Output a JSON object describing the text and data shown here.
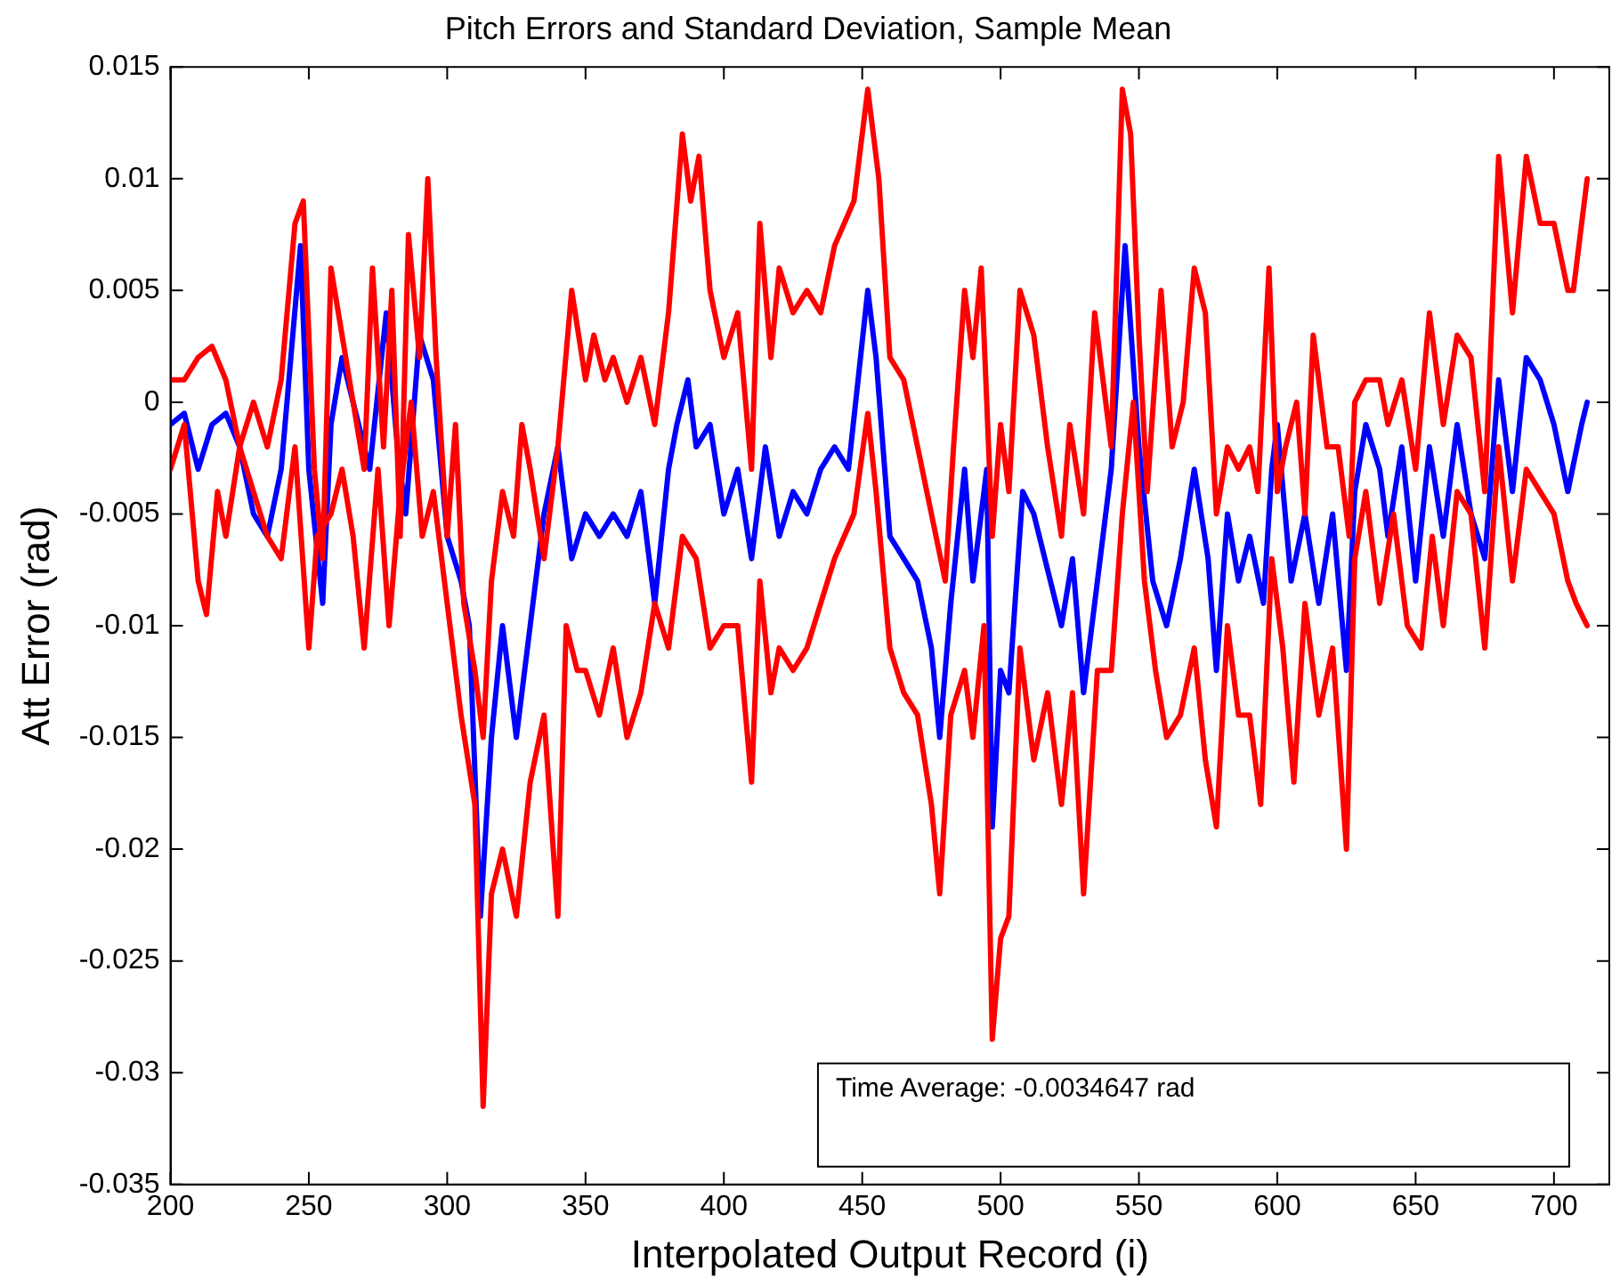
{
  "chart_data": {
    "type": "line",
    "title": "Pitch Errors and Standard Deviation, Sample Mean",
    "xlabel": "Interpolated Output Record (i)",
    "ylabel": "Att Error (rad)",
    "annotations": [
      "Time Average: -0.0034647 rad"
    ],
    "xlim": [
      200,
      720
    ],
    "xticks": [
      200,
      250,
      300,
      350,
      400,
      450,
      500,
      550,
      600,
      650,
      700
    ],
    "ylim": [
      -0.035,
      0.015
    ],
    "yticks": [
      -0.035,
      -0.03,
      -0.025,
      -0.02,
      -0.015,
      -0.01,
      -0.005,
      0,
      0.005,
      0.01,
      0.015
    ],
    "grid": false,
    "legend": false,
    "marker": "none",
    "line_style": "solid",
    "series": [
      {
        "color": "#ff0000",
        "x": [
          200,
          205,
          210,
          215,
          220,
          225,
          230,
          235,
          240,
          245,
          248,
          252,
          255,
          258,
          262,
          266,
          270,
          273,
          277,
          280,
          283,
          286,
          290,
          293,
          296,
          300,
          303,
          306,
          310,
          313,
          316,
          320,
          324,
          327,
          330,
          335,
          340,
          345,
          350,
          353,
          357,
          360,
          365,
          370,
          375,
          380,
          385,
          388,
          391,
          395,
          400,
          405,
          410,
          413,
          417,
          420,
          425,
          430,
          435,
          440,
          447,
          452,
          456,
          460,
          465,
          470,
          475,
          480,
          483,
          487,
          490,
          493,
          497,
          500,
          503,
          507,
          512,
          517,
          522,
          525,
          530,
          534,
          540,
          544,
          547,
          550,
          553,
          558,
          562,
          566,
          570,
          574,
          578,
          582,
          586,
          590,
          593,
          597,
          600,
          603,
          607,
          610,
          613,
          618,
          622,
          626,
          628,
          632,
          637,
          640,
          645,
          650,
          655,
          660,
          665,
          670,
          675,
          680,
          685,
          690,
          695,
          700,
          705,
          707,
          710,
          712
        ],
        "values": [
          0.001,
          0.001,
          0.002,
          0.0025,
          0.001,
          -0.002,
          0,
          -0.002,
          0.001,
          0.008,
          0.009,
          -0.003,
          -0.007,
          0.006,
          0.003,
          0,
          -0.003,
          0.006,
          -0.002,
          0.005,
          -0.006,
          0.0075,
          0.002,
          0.01,
          0.002,
          -0.006,
          -0.001,
          -0.009,
          -0.012,
          -0.015,
          -0.008,
          -0.004,
          -0.006,
          -0.001,
          -0.003,
          -0.007,
          -0.002,
          0.005,
          0.001,
          0.003,
          0.001,
          0.002,
          0,
          0.002,
          -0.001,
          0.004,
          0.012,
          0.009,
          0.011,
          0.005,
          0.002,
          0.004,
          -0.003,
          0.008,
          0.002,
          0.006,
          0.004,
          0.005,
          0.004,
          0.007,
          0.009,
          0.014,
          0.01,
          0.002,
          0.001,
          -0.002,
          -0.005,
          -0.008,
          -0.002,
          0.005,
          0.002,
          0.006,
          -0.006,
          -0.001,
          -0.004,
          0.005,
          0.003,
          -0.002,
          -0.006,
          -0.001,
          -0.005,
          0.004,
          -0.002,
          0.014,
          0.012,
          0.003,
          -0.004,
          0.005,
          -0.002,
          0,
          0.006,
          0.004,
          -0.005,
          -0.002,
          -0.003,
          -0.002,
          -0.004,
          0.006,
          -0.004,
          -0.002,
          0,
          -0.005,
          0.003,
          -0.002,
          -0.002,
          -0.006,
          0,
          0.001,
          0.001,
          -0.001,
          0.001,
          -0.003,
          0.004,
          -0.001,
          0.003,
          0.002,
          -0.004,
          0.011,
          0.004,
          0.011,
          0.008,
          0.008,
          0.005,
          0.005,
          0.008,
          0.01
        ]
      },
      {
        "color": "#ff0000",
        "x": [
          200,
          205,
          210,
          213,
          217,
          220,
          225,
          230,
          235,
          240,
          245,
          250,
          253,
          258,
          262,
          266,
          270,
          275,
          279,
          283,
          287,
          291,
          295,
          300,
          305,
          310,
          313,
          316,
          320,
          325,
          330,
          335,
          340,
          343,
          347,
          350,
          355,
          360,
          365,
          370,
          375,
          380,
          385,
          390,
          395,
          400,
          405,
          410,
          413,
          417,
          420,
          425,
          430,
          435,
          440,
          447,
          452,
          455,
          460,
          465,
          470,
          475,
          478,
          482,
          487,
          490,
          494,
          497,
          500,
          503,
          507,
          512,
          517,
          522,
          526,
          530,
          535,
          540,
          544,
          548,
          552,
          556,
          560,
          565,
          570,
          574,
          578,
          582,
          586,
          590,
          594,
          598,
          602,
          606,
          610,
          615,
          620,
          625,
          628,
          632,
          637,
          642,
          647,
          652,
          656,
          660,
          665,
          670,
          675,
          680,
          685,
          690,
          695,
          700,
          705,
          708,
          712
        ],
        "values": [
          -0.003,
          -0.001,
          -0.008,
          -0.0095,
          -0.004,
          -0.006,
          -0.002,
          -0.004,
          -0.006,
          -0.007,
          -0.002,
          -0.011,
          -0.006,
          -0.005,
          -0.003,
          -0.006,
          -0.011,
          -0.003,
          -0.01,
          -0.004,
          0,
          -0.006,
          -0.004,
          -0.009,
          -0.014,
          -0.018,
          -0.0315,
          -0.022,
          -0.02,
          -0.023,
          -0.017,
          -0.014,
          -0.023,
          -0.01,
          -0.012,
          -0.012,
          -0.014,
          -0.011,
          -0.015,
          -0.013,
          -0.009,
          -0.011,
          -0.006,
          -0.007,
          -0.011,
          -0.01,
          -0.01,
          -0.017,
          -0.008,
          -0.013,
          -0.011,
          -0.012,
          -0.011,
          -0.009,
          -0.007,
          -0.005,
          -0.0005,
          -0.004,
          -0.011,
          -0.013,
          -0.014,
          -0.018,
          -0.022,
          -0.014,
          -0.012,
          -0.015,
          -0.01,
          -0.0285,
          -0.024,
          -0.023,
          -0.011,
          -0.016,
          -0.013,
          -0.018,
          -0.013,
          -0.022,
          -0.012,
          -0.012,
          -0.005,
          0,
          -0.008,
          -0.012,
          -0.015,
          -0.014,
          -0.011,
          -0.016,
          -0.019,
          -0.01,
          -0.014,
          -0.014,
          -0.018,
          -0.007,
          -0.011,
          -0.017,
          -0.009,
          -0.014,
          -0.011,
          -0.02,
          -0.007,
          -0.004,
          -0.009,
          -0.005,
          -0.01,
          -0.011,
          -0.006,
          -0.01,
          -0.004,
          -0.005,
          -0.011,
          -0.002,
          -0.008,
          -0.003,
          -0.004,
          -0.005,
          -0.008,
          -0.009,
          -0.01
        ]
      },
      {
        "color": "#0000ff",
        "x": [
          200,
          205,
          210,
          215,
          220,
          225,
          230,
          235,
          240,
          247,
          250,
          255,
          258,
          262,
          268,
          272,
          278,
          282,
          285,
          290,
          295,
          300,
          305,
          308,
          312,
          316,
          320,
          325,
          330,
          335,
          340,
          345,
          350,
          355,
          360,
          365,
          370,
          375,
          380,
          383,
          387,
          390,
          395,
          400,
          405,
          410,
          415,
          420,
          425,
          430,
          435,
          440,
          445,
          452,
          455,
          460,
          465,
          470,
          475,
          478,
          482,
          487,
          490,
          495,
          497,
          500,
          503,
          508,
          512,
          518,
          522,
          526,
          530,
          535,
          540,
          545,
          550,
          555,
          560,
          565,
          570,
          575,
          578,
          582,
          586,
          590,
          595,
          598,
          600,
          605,
          610,
          615,
          620,
          625,
          628,
          632,
          637,
          640,
          645,
          650,
          655,
          660,
          665,
          670,
          675,
          680,
          685,
          690,
          695,
          700,
          705,
          710,
          712
        ],
        "values": [
          -0.001,
          -0.0005,
          -0.003,
          -0.001,
          -0.0005,
          -0.002,
          -0.005,
          -0.006,
          -0.003,
          0.007,
          -0.003,
          -0.009,
          -0.001,
          0.002,
          -0.001,
          -0.003,
          0.004,
          -0.002,
          -0.005,
          0.003,
          0.001,
          -0.006,
          -0.008,
          -0.01,
          -0.023,
          -0.015,
          -0.01,
          -0.015,
          -0.01,
          -0.005,
          -0.002,
          -0.007,
          -0.005,
          -0.006,
          -0.005,
          -0.006,
          -0.004,
          -0.009,
          -0.003,
          -0.001,
          0.001,
          -0.002,
          -0.001,
          -0.005,
          -0.003,
          -0.007,
          -0.002,
          -0.006,
          -0.004,
          -0.005,
          -0.003,
          -0.002,
          -0.003,
          0.005,
          0.002,
          -0.006,
          -0.007,
          -0.008,
          -0.011,
          -0.015,
          -0.009,
          -0.003,
          -0.008,
          -0.003,
          -0.019,
          -0.012,
          -0.013,
          -0.004,
          -0.005,
          -0.008,
          -0.01,
          -0.007,
          -0.013,
          -0.008,
          -0.003,
          0.007,
          -0.002,
          -0.008,
          -0.01,
          -0.007,
          -0.003,
          -0.007,
          -0.012,
          -0.005,
          -0.008,
          -0.006,
          -0.009,
          -0.003,
          -0.001,
          -0.008,
          -0.005,
          -0.009,
          -0.005,
          -0.012,
          -0.004,
          -0.001,
          -0.003,
          -0.006,
          -0.002,
          -0.008,
          -0.002,
          -0.006,
          -0.001,
          -0.005,
          -0.007,
          0.001,
          -0.004,
          0.002,
          0.001,
          -0.001,
          -0.004,
          -0.001,
          0
        ]
      }
    ]
  }
}
